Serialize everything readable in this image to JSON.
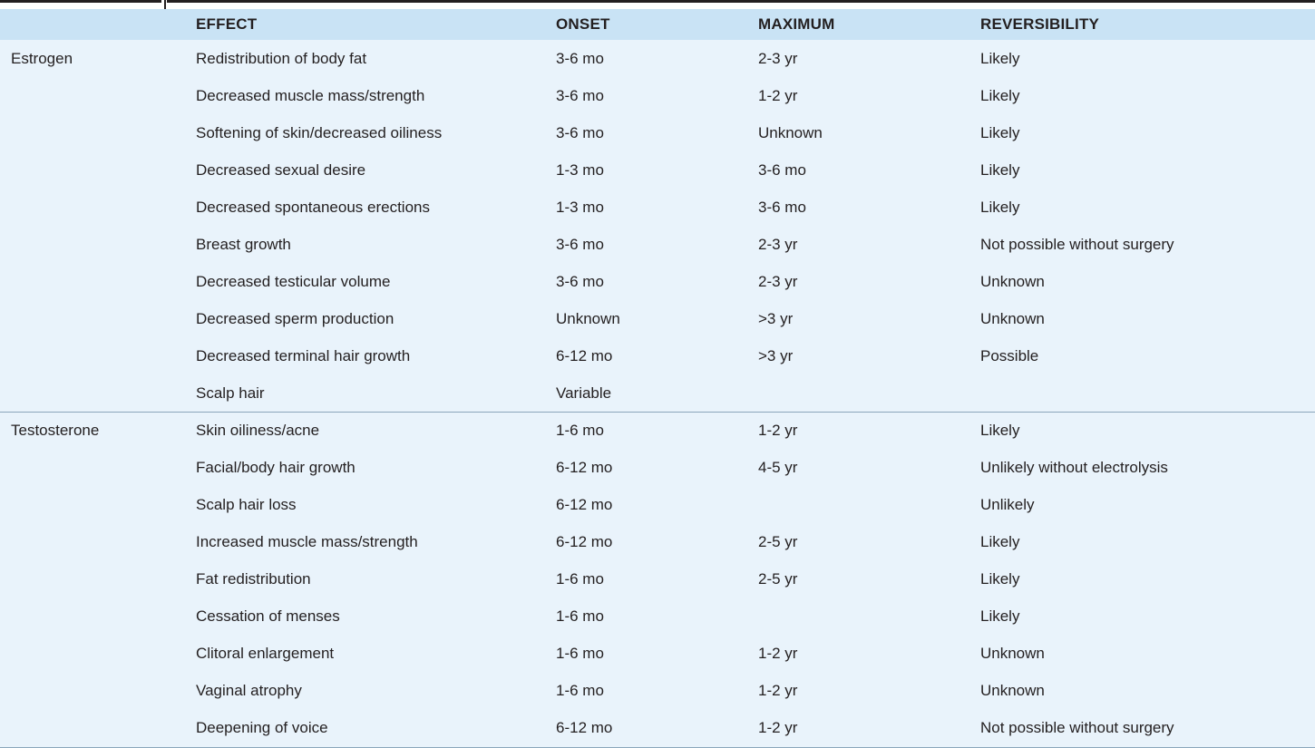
{
  "table": {
    "headers": {
      "group": "",
      "effect": "EFFECT",
      "onset": "ONSET",
      "maximum": "MAXIMUM",
      "reversibility": "REVERSIBILITY"
    },
    "groups": [
      {
        "name": "Estrogen",
        "rows": [
          {
            "effect": "Redistribution of body fat",
            "onset": "3-6 mo",
            "maximum": "2-3 yr",
            "reversibility": "Likely"
          },
          {
            "effect": "Decreased muscle mass/strength",
            "onset": "3-6 mo",
            "maximum": "1-2 yr",
            "reversibility": "Likely"
          },
          {
            "effect": "Softening of skin/decreased oiliness",
            "onset": "3-6 mo",
            "maximum": "Unknown",
            "reversibility": "Likely"
          },
          {
            "effect": "Decreased sexual desire",
            "onset": "1-3 mo",
            "maximum": "3-6 mo",
            "reversibility": "Likely"
          },
          {
            "effect": "Decreased spontaneous erections",
            "onset": "1-3 mo",
            "maximum": "3-6 mo",
            "reversibility": "Likely"
          },
          {
            "effect": "Breast growth",
            "onset": "3-6 mo",
            "maximum": "2-3 yr",
            "reversibility": "Not possible without surgery"
          },
          {
            "effect": "Decreased testicular volume",
            "onset": "3-6 mo",
            "maximum": "2-3 yr",
            "reversibility": "Unknown"
          },
          {
            "effect": "Decreased sperm production",
            "onset": "Unknown",
            "maximum": ">3 yr",
            "reversibility": "Unknown"
          },
          {
            "effect": "Decreased terminal hair growth",
            "onset": "6-12 mo",
            "maximum": ">3 yr",
            "reversibility": "Possible"
          },
          {
            "effect": "Scalp hair",
            "onset": "Variable",
            "maximum": "",
            "reversibility": ""
          }
        ]
      },
      {
        "name": "Testosterone",
        "rows": [
          {
            "effect": "Skin oiliness/acne",
            "onset": "1-6 mo",
            "maximum": "1-2 yr",
            "reversibility": "Likely"
          },
          {
            "effect": "Facial/body hair growth",
            "onset": "6-12 mo",
            "maximum": "4-5 yr",
            "reversibility": "Unlikely without electrolysis"
          },
          {
            "effect": "Scalp hair loss",
            "onset": "6-12 mo",
            "maximum": "",
            "reversibility": "Unlikely"
          },
          {
            "effect": "Increased muscle mass/strength",
            "onset": "6-12 mo",
            "maximum": "2-5 yr",
            "reversibility": "Likely"
          },
          {
            "effect": "Fat redistribution",
            "onset": "1-6 mo",
            "maximum": "2-5 yr",
            "reversibility": "Likely"
          },
          {
            "effect": "Cessation of menses",
            "onset": "1-6 mo",
            "maximum": "",
            "reversibility": "Likely"
          },
          {
            "effect": "Clitoral enlargement",
            "onset": "1-6 mo",
            "maximum": "1-2 yr",
            "reversibility": "Unknown"
          },
          {
            "effect": "Vaginal atrophy",
            "onset": "1-6 mo",
            "maximum": "1-2 yr",
            "reversibility": "Unknown"
          },
          {
            "effect": "Deepening of voice",
            "onset": "6-12 mo",
            "maximum": "1-2 yr",
            "reversibility": "Not possible without surgery"
          }
        ]
      }
    ]
  }
}
